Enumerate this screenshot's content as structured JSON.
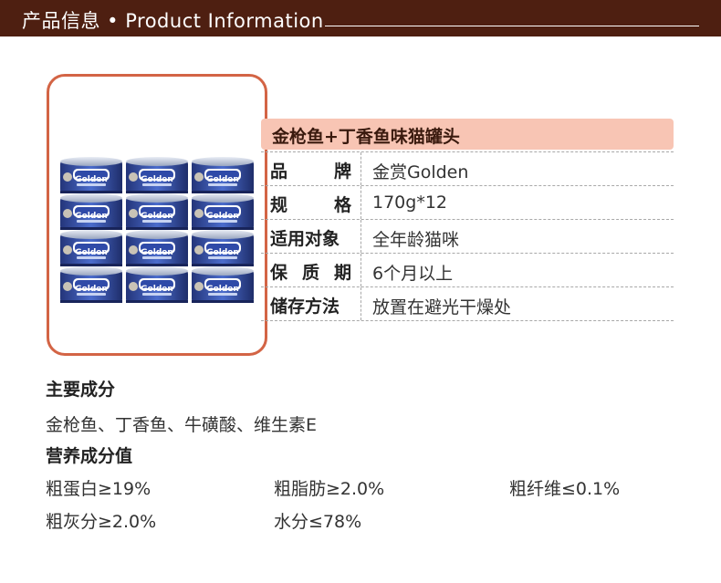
{
  "header": {
    "title": "产品信息 • Product Information"
  },
  "product": {
    "title": "金枪鱼+丁香鱼味猫罐头",
    "can_brand_text": "Golden"
  },
  "specs": [
    {
      "label_chars": [
        "品",
        "牌"
      ],
      "value": "金赏Golden"
    },
    {
      "label_chars": [
        "规",
        "格"
      ],
      "value": "170g*12"
    },
    {
      "label_chars": [
        "适用对象"
      ],
      "value": "全年龄猫咪"
    },
    {
      "label_chars": [
        "保",
        "质",
        "期"
      ],
      "value": "6个月以上"
    },
    {
      "label_chars": [
        "储存方法"
      ],
      "value": "放置在避光干燥处"
    }
  ],
  "ingredients": {
    "heading": "主要成分",
    "text": "金枪鱼、丁香鱼、牛磺酸、维生素E"
  },
  "nutrition": {
    "heading": "营养成分值",
    "items": [
      "粗蛋白≥19%",
      "粗脂肪≥2.0%",
      "粗纤维≤0.1%",
      "粗灰分≥2.0%",
      "水分≤78%"
    ]
  },
  "colors": {
    "header_bg": "#4e1f11",
    "frame_border": "#d36445",
    "title_bar_bg": "#f8c5b4",
    "can_blue": "#3a56b0"
  }
}
